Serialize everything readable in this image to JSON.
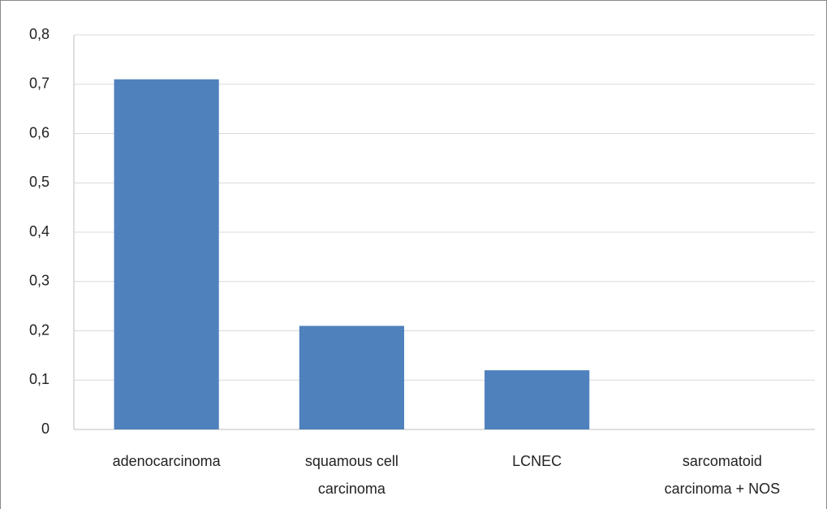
{
  "chart_data": {
    "type": "bar",
    "categories": [
      "adenocarcinoma",
      "squamous cell carcinoma",
      "LCNEC",
      "sarcomatoid carcinoma + NOS"
    ],
    "values": [
      0.71,
      0.21,
      0.12,
      0
    ],
    "color": "#4f81bd",
    "ylim": [
      0,
      0.8
    ],
    "yticks": [
      0,
      {
        "value": 0.1,
        "label": "0,1"
      },
      {
        "value": 0.2,
        "label": "0,2"
      },
      {
        "value": 0.3,
        "label": "0,3"
      },
      {
        "value": 0.4,
        "label": "0,4"
      },
      {
        "value": 0.5,
        "label": "0,5"
      },
      {
        "value": 0.6,
        "label": "0,6"
      },
      {
        "value": 0.7,
        "label": "0,7"
      },
      {
        "value": 0.8,
        "label": "0,8"
      }
    ],
    "grid": true
  }
}
